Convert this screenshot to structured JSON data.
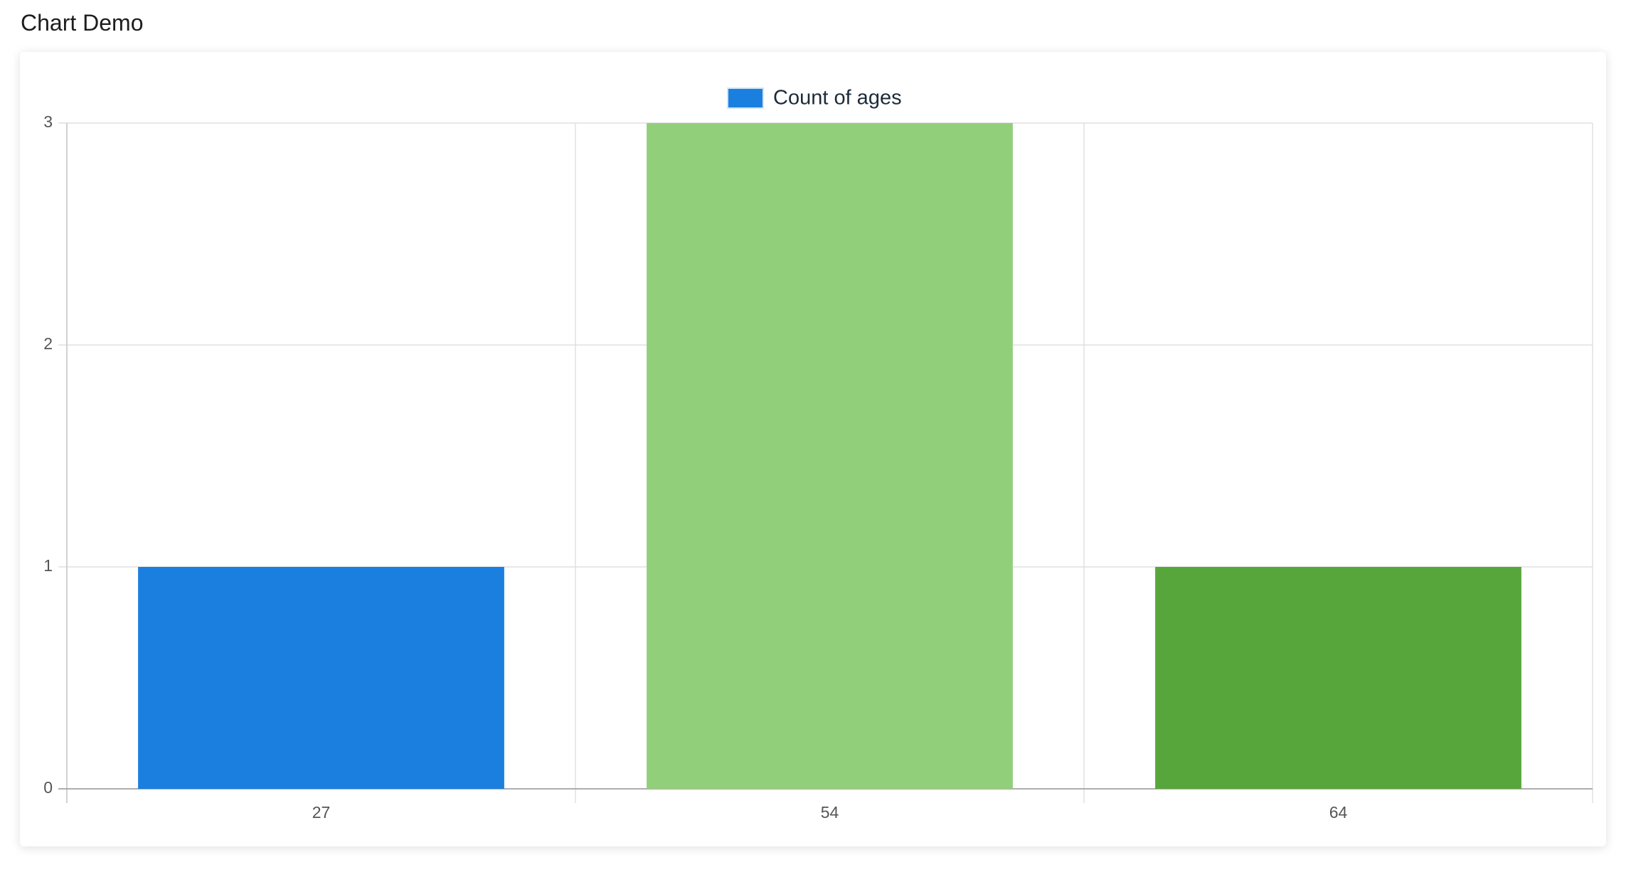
{
  "header": {
    "title": "Chart Demo"
  },
  "chart_data": {
    "type": "bar",
    "categories": [
      "27",
      "54",
      "64"
    ],
    "series": [
      {
        "name": "Count of ages",
        "colors": [
          "#1b7fdf",
          "#92cf7b",
          "#57a63c"
        ],
        "values": [
          1,
          3,
          1
        ]
      }
    ],
    "ylim": [
      0,
      3
    ],
    "yticks": [
      0,
      1,
      2,
      3
    ],
    "grid": true,
    "legend": "top"
  }
}
